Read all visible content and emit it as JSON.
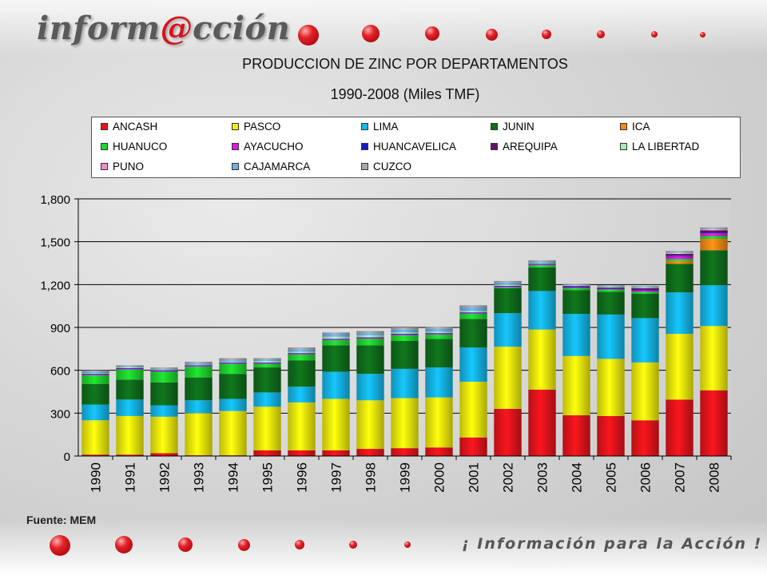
{
  "header": {
    "logo_prefix": "inform",
    "logo_at": "@",
    "logo_suffix": "cción"
  },
  "footer": {
    "source": "Fuente: MEM",
    "slogan": "¡ Información para la Acción !"
  },
  "colors": {
    "ANCASH": "#e8141c",
    "PASCO": "#f2ee0c",
    "LIMA": "#14b8ea",
    "JUNIN": "#0f6f1c",
    "ICA": "#f48a14",
    "HUANUCO": "#1ed82e",
    "AYACUCHO": "#dd18e4",
    "HUANCAVELICA": "#1818c0",
    "AREQUIPA": "#6a0e6e",
    "LA LIBERTAD": "#a8eab8",
    "PUNO": "#f090c4",
    "CAJAMARCA": "#6cb0e8",
    "CUZCO": "#a8a8a8"
  },
  "chart_data": {
    "type": "bar",
    "stacked": true,
    "title": "PRODUCCION  DE ZINC POR DEPARTAMENTOS",
    "subtitle": "1990-2008  (Miles TMF)",
    "xlabel": "",
    "ylabel": "",
    "ylim": [
      0,
      1800
    ],
    "yticks": [
      0,
      300,
      600,
      900,
      1200,
      1500,
      1800
    ],
    "ytick_labels": [
      "0",
      "300",
      "600",
      "900",
      "1,200",
      "1,500",
      "1,800"
    ],
    "grid": true,
    "legend_position": "top",
    "categories": [
      "1990",
      "1991",
      "1992",
      "1993",
      "1994",
      "1995",
      "1996",
      "1997",
      "1998",
      "1999",
      "2000",
      "2001",
      "2002",
      "2003",
      "2004",
      "2005",
      "2006",
      "2007",
      "2008"
    ],
    "series": [
      {
        "name": "ANCASH",
        "values": [
          10,
          10,
          20,
          5,
          5,
          40,
          40,
          40,
          50,
          55,
          60,
          130,
          330,
          465,
          285,
          280,
          250,
          395,
          460
        ]
      },
      {
        "name": "PASCO",
        "values": [
          240,
          270,
          255,
          295,
          310,
          305,
          335,
          360,
          340,
          350,
          350,
          390,
          435,
          420,
          415,
          400,
          405,
          460,
          450
        ]
      },
      {
        "name": "LIMA",
        "values": [
          110,
          115,
          80,
          90,
          85,
          100,
          110,
          190,
          185,
          205,
          210,
          240,
          235,
          270,
          295,
          310,
          310,
          290,
          285
        ]
      },
      {
        "name": "JUNIN",
        "values": [
          145,
          140,
          160,
          160,
          175,
          175,
          185,
          185,
          200,
          195,
          200,
          200,
          175,
          165,
          165,
          160,
          170,
          200,
          245
        ]
      },
      {
        "name": "ICA",
        "values": [
          0,
          0,
          0,
          0,
          0,
          0,
          0,
          0,
          0,
          0,
          0,
          0,
          0,
          0,
          0,
          0,
          0,
          20,
          80
        ]
      },
      {
        "name": "HUANUCO",
        "values": [
          60,
          70,
          75,
          75,
          70,
          25,
          40,
          35,
          45,
          40,
          30,
          35,
          5,
          15,
          15,
          15,
          15,
          15,
          20
        ]
      },
      {
        "name": "AYACUCHO",
        "values": [
          5,
          5,
          5,
          5,
          5,
          5,
          5,
          5,
          5,
          5,
          5,
          5,
          5,
          5,
          5,
          5,
          10,
          20,
          20
        ]
      },
      {
        "name": "HUANCAVELICA",
        "values": [
          5,
          5,
          5,
          5,
          5,
          5,
          5,
          5,
          5,
          5,
          5,
          5,
          5,
          5,
          5,
          5,
          5,
          5,
          5
        ]
      },
      {
        "name": "AREQUIPA",
        "values": [
          0,
          0,
          0,
          0,
          0,
          0,
          0,
          0,
          0,
          0,
          0,
          0,
          0,
          0,
          5,
          5,
          10,
          10,
          15
        ]
      },
      {
        "name": "LA LIBERTAD",
        "values": [
          5,
          5,
          5,
          5,
          5,
          10,
          10,
          15,
          15,
          10,
          10,
          10,
          10,
          5,
          5,
          5,
          5,
          5,
          5
        ]
      },
      {
        "name": "PUNO",
        "values": [
          0,
          0,
          0,
          0,
          0,
          0,
          0,
          0,
          0,
          0,
          0,
          0,
          0,
          0,
          0,
          0,
          0,
          5,
          5
        ]
      },
      {
        "name": "CAJAMARCA",
        "values": [
          10,
          5,
          5,
          10,
          10,
          10,
          15,
          20,
          15,
          20,
          20,
          25,
          15,
          10,
          5,
          5,
          5,
          5,
          5
        ]
      },
      {
        "name": "CUZCO",
        "values": [
          10,
          10,
          10,
          10,
          15,
          10,
          15,
          10,
          15,
          15,
          15,
          15,
          10,
          10,
          5,
          5,
          5,
          5,
          5
        ]
      }
    ]
  }
}
